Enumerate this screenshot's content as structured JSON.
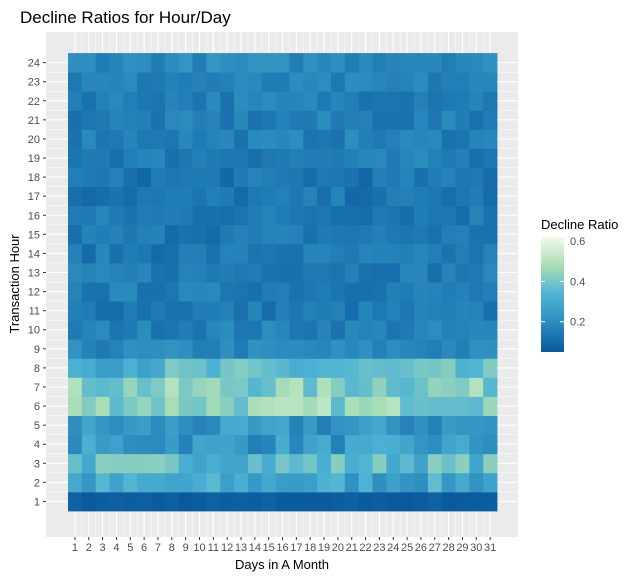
{
  "chart_data": {
    "type": "heatmap",
    "title": "Decline Ratios for Hour/Day",
    "xlabel": "Days in A Month",
    "ylabel": "Transaction Hour",
    "x": [
      1,
      2,
      3,
      4,
      5,
      6,
      7,
      8,
      9,
      10,
      11,
      12,
      13,
      14,
      15,
      16,
      17,
      18,
      19,
      20,
      21,
      22,
      23,
      24,
      25,
      26,
      27,
      28,
      29,
      30,
      31
    ],
    "y": [
      1,
      2,
      3,
      4,
      5,
      6,
      7,
      8,
      9,
      10,
      11,
      12,
      13,
      14,
      15,
      16,
      17,
      18,
      19,
      20,
      21,
      22,
      23,
      24
    ],
    "x_tick_labels": [
      "1",
      "2",
      "3",
      "4",
      "5",
      "6",
      "7",
      "8",
      "9",
      "10",
      "11",
      "12",
      "13",
      "14",
      "15",
      "16",
      "17",
      "18",
      "19",
      "20",
      "21",
      "22",
      "23",
      "24",
      "25",
      "26",
      "27",
      "28",
      "29",
      "30",
      "31"
    ],
    "y_tick_labels": [
      "1",
      "2",
      "3",
      "4",
      "5",
      "6",
      "7",
      "8",
      "9",
      "10",
      "11",
      "12",
      "13",
      "14",
      "15",
      "16",
      "17",
      "18",
      "19",
      "20",
      "21",
      "22",
      "23",
      "24"
    ],
    "hour_profile": [
      0.06,
      0.28,
      0.36,
      0.24,
      0.22,
      0.44,
      0.42,
      0.34,
      0.18,
      0.16,
      0.14,
      0.15,
      0.15,
      0.14,
      0.14,
      0.14,
      0.13,
      0.13,
      0.15,
      0.16,
      0.15,
      0.16,
      0.16,
      0.19
    ],
    "value_range": [
      0.05,
      0.62
    ],
    "legend": {
      "title": "Decline Ratio",
      "ticks": [
        0.2,
        0.4,
        0.6
      ],
      "tick_labels": [
        "0.2",
        "0.4",
        "0.6"
      ],
      "placement": "right"
    },
    "colors": {
      "low": "#08589e",
      "mid_low": "#2b8cbe",
      "mid": "#4eb3d3",
      "mid_high": "#a8ddb5",
      "high": "#f0f9e8",
      "panel_background": "#ebebeb",
      "grid": "#ffffff"
    }
  }
}
